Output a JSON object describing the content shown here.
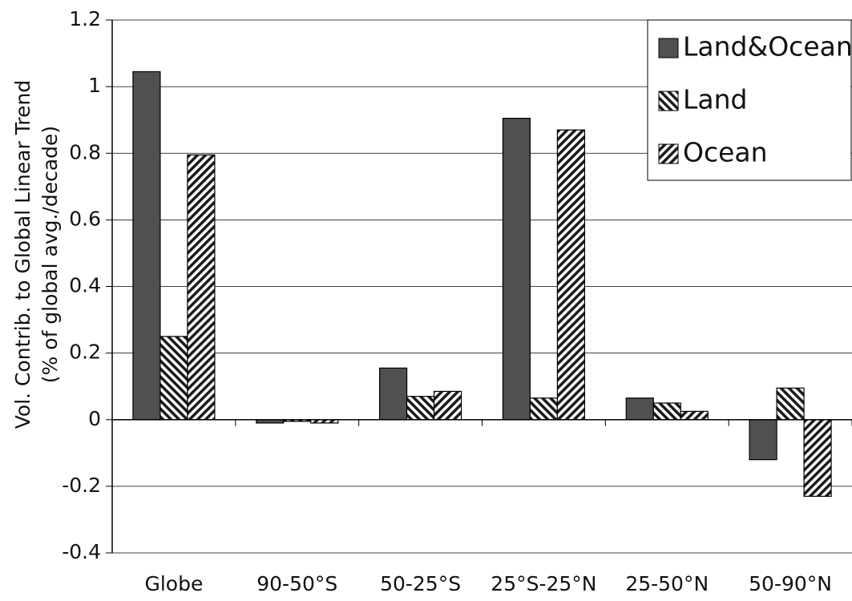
{
  "chart_data": {
    "type": "bar",
    "ylabel": [
      "Vol. Contrib. to Global Linear Trend",
      "(% of global avg./decade)"
    ],
    "categories": [
      "Globe",
      "90-50°S",
      "50-25°S",
      "25°S-25°N",
      "25-50°N",
      "50-90°N"
    ],
    "series": [
      {
        "name": "Land&Ocean",
        "color": "#505050",
        "values": [
          1.045,
          -0.01,
          0.155,
          0.905,
          0.065,
          -0.12
        ]
      },
      {
        "name": "Land",
        "color": "#1a1a1a",
        "values": [
          0.25,
          -0.005,
          0.07,
          0.065,
          0.05,
          0.095
        ]
      },
      {
        "name": "Ocean",
        "color": "#1a1a1a",
        "values": [
          0.795,
          -0.01,
          0.085,
          0.87,
          0.025,
          -0.23
        ]
      }
    ],
    "ylim": [
      -0.4,
      1.2
    ],
    "yticks": [
      -0.4,
      -0.2,
      0,
      0.2,
      0.4,
      0.6,
      0.8,
      1,
      1.2
    ],
    "grid": true,
    "legend": "upper right"
  }
}
